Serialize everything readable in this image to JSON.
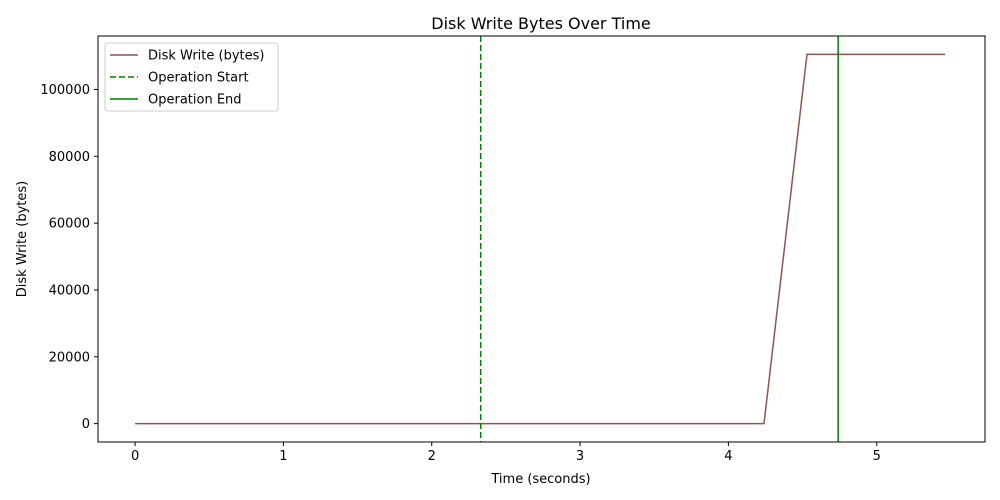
{
  "chart_data": {
    "type": "line",
    "title": "Disk Write Bytes Over Time",
    "xlabel": "Time (seconds)",
    "ylabel": "Disk Write (bytes)",
    "xlim": [
      -0.25,
      5.73
    ],
    "ylim": [
      -5500,
      116000
    ],
    "xticks": [
      0,
      1,
      2,
      3,
      4,
      5
    ],
    "yticks": [
      0,
      20000,
      40000,
      60000,
      80000,
      100000
    ],
    "grid": false,
    "legend_position": "top-left",
    "series": [
      {
        "name": "Disk Write (bytes)",
        "color": "#8c564b",
        "x": [
          0,
          4.24,
          4.53,
          5.46
        ],
        "y": [
          0,
          0,
          110500,
          110500
        ]
      }
    ],
    "vlines": [
      {
        "name": "Operation Start",
        "x": 2.33,
        "color": "#008000",
        "style": "dashed"
      },
      {
        "name": "Operation End",
        "x": 4.74,
        "color": "#008000",
        "style": "solid"
      }
    ]
  }
}
